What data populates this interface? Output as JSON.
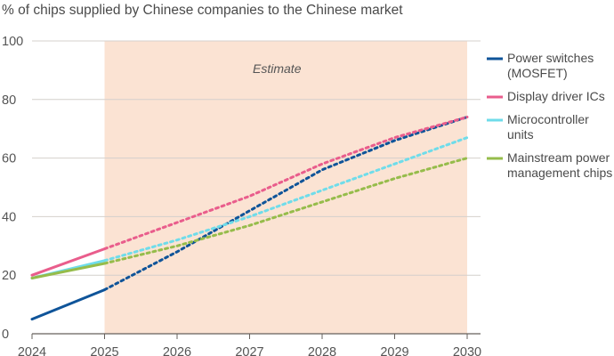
{
  "chart_data": {
    "type": "line",
    "title": "",
    "subtitle": "% of chips supplied by Chinese companies to the Chinese market",
    "xlabel": "",
    "ylabel": "",
    "xlim": [
      2024,
      2030
    ],
    "ylim": [
      0,
      100
    ],
    "x_ticks": [
      "2024",
      "2025",
      "2026",
      "2027",
      "2028",
      "2029",
      "2030"
    ],
    "y_ticks": [
      "0",
      "20",
      "40",
      "60",
      "80",
      "100"
    ],
    "grid": "horizontal",
    "legend_position": "right",
    "annotation": {
      "text": "Estimate",
      "x_start": 2025,
      "x_end": 2030,
      "color": "#fbe3d3"
    },
    "series": [
      {
        "name": "Power switches (MOSFET)",
        "label_lines": [
          "Power switches",
          "(MOSFET)"
        ],
        "color": "#0f5499",
        "points": [
          [
            2024,
            5
          ],
          [
            2025,
            15
          ],
          [
            2026,
            28
          ],
          [
            2027,
            42
          ],
          [
            2028,
            56
          ],
          [
            2029,
            66
          ],
          [
            2030,
            74
          ]
        ],
        "estimate_from": 2025
      },
      {
        "name": "Display driver ICs",
        "label_lines": [
          "Display driver ICs"
        ],
        "color": "#e95d8c",
        "points": [
          [
            2024,
            20
          ],
          [
            2025,
            29
          ],
          [
            2026,
            38
          ],
          [
            2027,
            47
          ],
          [
            2028,
            58
          ],
          [
            2029,
            67
          ],
          [
            2030,
            74
          ]
        ],
        "estimate_from": 2025
      },
      {
        "name": "Microcontroller units",
        "label_lines": [
          "Microcontroller",
          "units"
        ],
        "color": "#6fdcea",
        "points": [
          [
            2024,
            19
          ],
          [
            2025,
            25
          ],
          [
            2026,
            32
          ],
          [
            2027,
            40
          ],
          [
            2028,
            49
          ],
          [
            2029,
            58
          ],
          [
            2030,
            67
          ]
        ],
        "estimate_from": 2025
      },
      {
        "name": "Mainstream power management chips",
        "label_lines": [
          "Mainstream power",
          "management chips"
        ],
        "color": "#96bc4b",
        "points": [
          [
            2024,
            19
          ],
          [
            2025,
            24
          ],
          [
            2026,
            30
          ],
          [
            2027,
            37
          ],
          [
            2028,
            45
          ],
          [
            2029,
            53
          ],
          [
            2030,
            60
          ]
        ],
        "estimate_from": 2025
      }
    ]
  }
}
